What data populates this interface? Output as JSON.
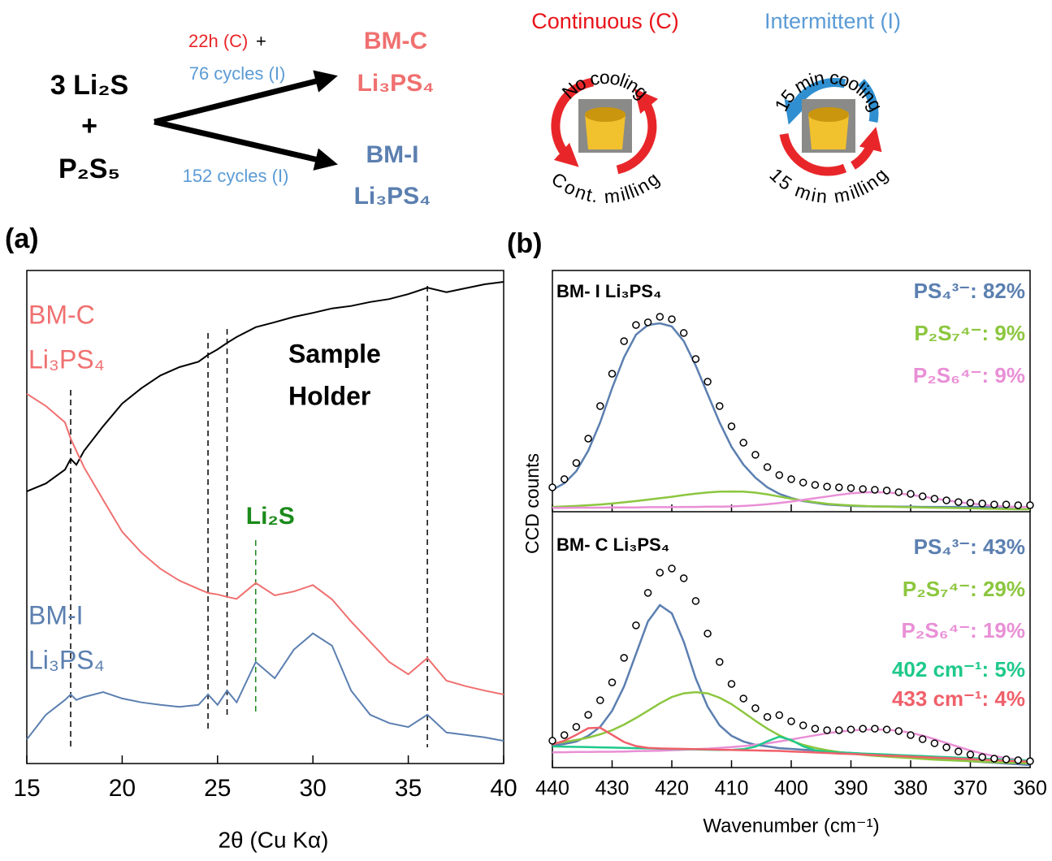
{
  "schematic": {
    "reactant_1": "3 Li₂S",
    "plus": "+",
    "reactant_2": "P₂S₅",
    "route_c_time": "22h (C)",
    "route_c_plus": "+",
    "route_c_cycles": "76 cycles (I)",
    "route_i_cycles": "152 cycles (I)",
    "product_c": [
      "BM-C",
      "Li₃PS₄"
    ],
    "product_i": [
      "BM-I",
      "Li₃PS₄"
    ],
    "continuous": {
      "title": "Continuous (C)",
      "top": "No cooling",
      "bottom": "Cont. milling"
    },
    "intermittent": {
      "title": "Intermittent (I)",
      "top": "15 min cooling",
      "bottom": "15 min milling"
    }
  },
  "chart_data": [
    {
      "type": "line",
      "panel_label": "(a)",
      "xlabel": "2θ (Cu Kα)",
      "xlim": [
        15,
        40
      ],
      "xticks": [
        15,
        20,
        25,
        30,
        35,
        40
      ],
      "ylim": [
        0,
        100
      ],
      "x": [
        15,
        16,
        17,
        17.3,
        17.6,
        18,
        19,
        20,
        21,
        22,
        23,
        24,
        24.5,
        25,
        25.5,
        26,
        27,
        28,
        29,
        30,
        31,
        32,
        33,
        34,
        35,
        36,
        37,
        38,
        39,
        40
      ],
      "series": [
        {
          "name_lines": [
            "Sample",
            "Holder"
          ],
          "color": "#000000",
          "values": [
            55.2,
            56.8,
            59.6,
            61.8,
            60.6,
            63.4,
            68.4,
            73.0,
            76.1,
            78.7,
            80.4,
            81.5,
            82.9,
            84.0,
            85.3,
            86.5,
            88.5,
            89.5,
            90.6,
            91.4,
            92.3,
            92.8,
            93.6,
            94.2,
            95.2,
            96.5,
            95.6,
            96.4,
            97.2,
            97.7
          ]
        },
        {
          "name_lines": [
            "BM-C",
            "Li₃PS₄"
          ],
          "color": "#f07070",
          "values": [
            75.0,
            72.5,
            69.2,
            65.9,
            63.4,
            60.1,
            53.5,
            47.0,
            42.8,
            39.5,
            37.1,
            35.4,
            34.6,
            34.3,
            33.8,
            33.4,
            36.6,
            34.1,
            34.9,
            36.2,
            33.3,
            28.8,
            24.7,
            20.6,
            18.1,
            21.4,
            16.8,
            15.7,
            14.8,
            14.0
          ]
        },
        {
          "name_lines": [
            "BM-I",
            "Li₃PS₄"
          ],
          "color": "#5b7fb0",
          "values": [
            4.9,
            9.9,
            12.9,
            14.0,
            12.9,
            13.5,
            14.5,
            13.2,
            12.4,
            11.9,
            11.5,
            11.9,
            14.0,
            11.9,
            14.8,
            12.4,
            20.6,
            17.3,
            23.1,
            26.4,
            23.9,
            14.8,
            9.9,
            8.2,
            7.4,
            9.9,
            6.3,
            5.8,
            5.3,
            4.6
          ]
        }
      ],
      "vlines": {
        "color": "#000000",
        "x": [
          17.3,
          24.5,
          25.5,
          36
        ]
      },
      "marker_line": {
        "label": "Li₂S",
        "color": "#1a8a1a",
        "x": 27
      }
    },
    {
      "type": "line",
      "panel_label": "(b)",
      "xlabel": "Wavenumber (cm⁻¹)",
      "ylabel": "CCD counts",
      "xlim": [
        440,
        360
      ],
      "xticks": [
        440,
        430,
        420,
        410,
        400,
        390,
        380,
        370,
        360
      ],
      "x": [
        440,
        438,
        436,
        434,
        432,
        430,
        428,
        426,
        424,
        422,
        420,
        418,
        416,
        414,
        412,
        410,
        408,
        406,
        404,
        402,
        400,
        398,
        396,
        394,
        392,
        390,
        388,
        386,
        384,
        382,
        380,
        378,
        376,
        374,
        372,
        370,
        368,
        366,
        364,
        362,
        360
      ],
      "panels": [
        {
          "title": "BM- I Li₃PS₄",
          "ylim": [
            0,
            100
          ],
          "measured": {
            "marker": "circle",
            "color": "#000000",
            "values": [
              10.1,
              13.5,
              20.2,
              30.3,
              43.8,
              57.2,
              70.7,
              77.4,
              78.5,
              80.8,
              79.8,
              74.1,
              63.3,
              53.9,
              43.8,
              35.4,
              28.6,
              23.6,
              18.5,
              15.2,
              13.5,
              12.1,
              11.1,
              10.4,
              10.1,
              9.8,
              9.4,
              9.1,
              8.8,
              8.1,
              7.4,
              6.4,
              5.4,
              4.7,
              4.0,
              3.7,
              3.4,
              3.0,
              3.0,
              2.7,
              2.7
            ]
          },
          "series": [
            {
              "name": "PS₄³⁻: 82%",
              "color": "#5b7fb0",
              "values": [
                9.1,
                11.8,
                16.8,
                25.3,
                37.0,
                51.2,
                64.0,
                73.4,
                77.4,
                78.1,
                76.8,
                70.7,
                60.6,
                48.8,
                37.0,
                26.9,
                19.5,
                14.1,
                10.1,
                7.4,
                5.7,
                4.4,
                3.7,
                3.0,
                2.7,
                2.4,
                2.3,
                2.2,
                2.2,
                2.1,
                2.1,
                2.0,
                2.0,
                2.0,
                2.0,
                2.0,
                2.0,
                2.0,
                2.0,
                2.0,
                2.0
              ]
            },
            {
              "name": "P₂S₇⁴⁻: 9%",
              "color": "#8cc63f",
              "values": [
                2.0,
                2.2,
                2.4,
                2.7,
                3.0,
                3.4,
                3.9,
                4.4,
                5.0,
                5.6,
                6.2,
                6.9,
                7.5,
                8.0,
                8.3,
                8.4,
                8.3,
                7.9,
                7.2,
                6.3,
                5.4,
                4.6,
                3.9,
                3.3,
                2.9,
                2.6,
                2.4,
                2.2,
                2.1,
                2.0,
                1.9,
                1.8,
                1.7,
                1.6,
                1.5,
                1.4,
                1.3,
                1.2,
                1.1,
                1.0,
                1.0
              ]
            },
            {
              "name": "P₂S₆⁴⁻: 9%",
              "color": "#e98fd6",
              "values": [
                1.6,
                1.6,
                1.7,
                1.7,
                1.7,
                1.8,
                1.8,
                1.8,
                1.9,
                1.9,
                1.9,
                2.0,
                2.0,
                2.1,
                2.1,
                2.2,
                2.4,
                2.7,
                3.1,
                3.6,
                4.2,
                4.9,
                5.6,
                6.3,
                7.0,
                7.6,
                8.0,
                8.1,
                8.0,
                7.6,
                7.0,
                6.3,
                5.5,
                4.7,
                4.0,
                3.4,
                2.9,
                2.5,
                2.2,
                2.0,
                1.9
              ]
            }
          ]
        },
        {
          "title": "BM- C Li₃PS₄",
          "ylim": [
            0,
            100
          ],
          "measured": {
            "marker": "circle",
            "color": "#000000",
            "values": [
              10.5,
              12.7,
              15.9,
              20.6,
              26.3,
              33.3,
              42.9,
              55.6,
              68.3,
              76.2,
              77.8,
              74.0,
              65.1,
              52.4,
              41.3,
              32.7,
              27.0,
              23.2,
              19.8,
              20.5,
              18.1,
              16.5,
              15.2,
              14.6,
              14.6,
              14.9,
              15.2,
              15.2,
              14.9,
              14.3,
              12.7,
              11.1,
              9.5,
              7.9,
              6.3,
              5.1,
              4.1,
              3.5,
              3.2,
              2.9,
              2.5
            ]
          },
          "series": [
            {
              "name": "PS₄³⁻:  43%",
              "color": "#5b7fb0",
              "values": [
                8.6,
                9.2,
                10.2,
                12.4,
                15.9,
                22.2,
                31.7,
                44.4,
                57.1,
                63.5,
                60.3,
                49.2,
                34.9,
                23.8,
                16.5,
                12.4,
                10.2,
                8.9,
                8.3,
                7.6,
                7.3,
                7.0,
                6.7,
                6.3,
                6.0,
                5.7,
                5.4,
                5.1,
                4.8,
                4.4,
                4.1,
                3.8,
                3.5,
                3.2,
                2.9,
                2.5,
                2.2,
                1.9,
                1.6,
                1.3,
                1.0
              ]
            },
            {
              "name": "P₂S₇⁴⁻: 29%",
              "color": "#8cc63f",
              "values": [
                9.5,
                10.0,
                10.8,
                11.7,
                13.0,
                14.6,
                16.8,
                19.4,
                22.2,
                25.1,
                27.6,
                29.0,
                29.5,
                29.0,
                27.3,
                24.8,
                21.6,
                18.3,
                15.2,
                12.6,
                10.5,
                8.9,
                7.7,
                6.8,
                6.1,
                5.5,
                5.0,
                4.6,
                4.3,
                4.0,
                3.7,
                3.4,
                3.1,
                2.9,
                2.7,
                2.5,
                2.3,
                2.1,
                1.9,
                1.8,
                1.6
              ]
            },
            {
              "name": "P₂S₆⁴⁻: 19%",
              "color": "#e98fd6",
              "values": [
                6.0,
                6.0,
                6.1,
                6.1,
                6.2,
                6.2,
                6.3,
                6.4,
                6.5,
                6.6,
                6.8,
                7.0,
                7.2,
                7.4,
                7.7,
                8.0,
                8.4,
                8.9,
                9.5,
                10.2,
                11.0,
                11.8,
                12.6,
                13.4,
                14.0,
                14.5,
                14.8,
                14.9,
                14.8,
                14.4,
                13.6,
                12.5,
                11.1,
                9.6,
                8.1,
                6.7,
                5.5,
                4.5,
                3.7,
                3.1,
                2.6
              ]
            },
            {
              "name": "402 cm⁻¹:  5%",
              "color": "#1ec98a",
              "values": [
                8.3,
                8.2,
                8.1,
                8.0,
                7.9,
                7.8,
                7.7,
                7.6,
                7.5,
                7.4,
                7.3,
                7.2,
                7.1,
                7.0,
                6.9,
                6.9,
                7.2,
                8.2,
                10.3,
                12.1,
                10.8,
                8.3,
                6.8,
                6.2,
                5.9,
                5.7,
                5.5,
                5.3,
                5.1,
                4.9,
                4.7,
                4.5,
                4.3,
                4.1,
                3.9,
                3.7,
                3.5,
                3.3,
                3.1,
                2.9,
                2.7
              ]
            },
            {
              "name": "433 cm⁻¹:  4%",
              "color": "#f0606a",
              "values": [
                9.0,
                10.5,
                12.8,
                15.4,
                15.6,
                12.8,
                10.0,
                8.4,
                7.7,
                7.5,
                7.4,
                7.3,
                7.2,
                7.1,
                7.0,
                6.9,
                6.8,
                6.7,
                6.6,
                6.5,
                6.3,
                6.1,
                5.9,
                5.7,
                5.5,
                5.3,
                5.1,
                4.9,
                4.7,
                4.5,
                4.3,
                4.1,
                3.9,
                3.7,
                3.5,
                3.3,
                3.1,
                2.9,
                2.7,
                2.5,
                2.3
              ]
            }
          ]
        }
      ]
    }
  ]
}
